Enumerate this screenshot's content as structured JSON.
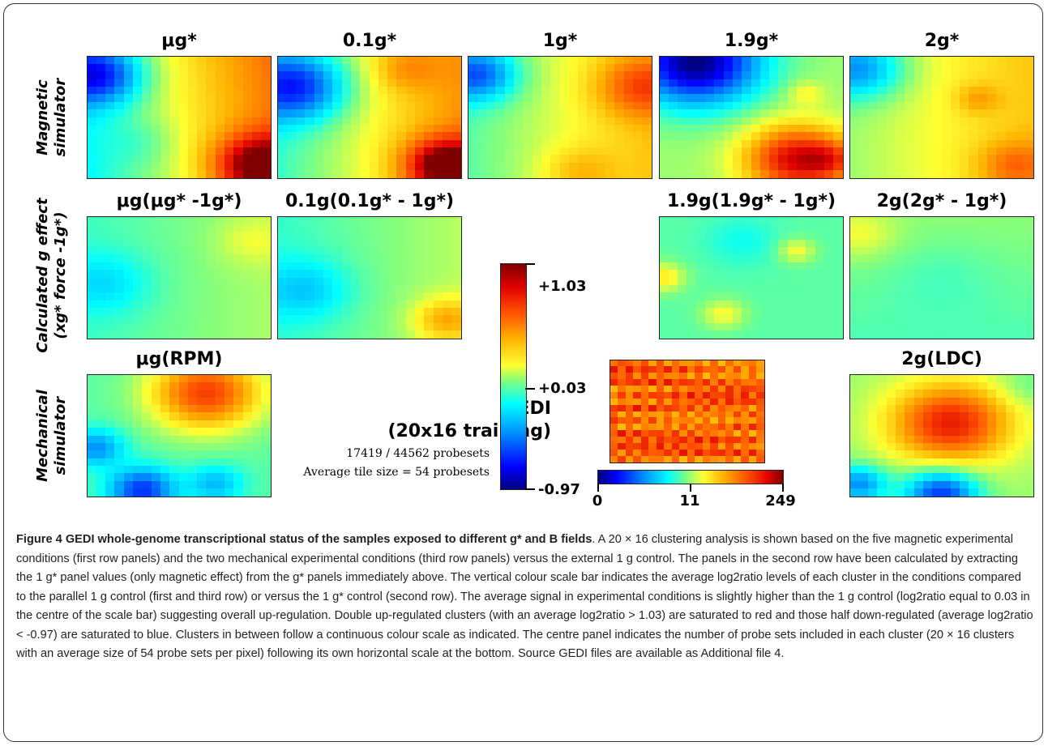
{
  "figure": {
    "column_titles": [
      "μg*",
      "0.1g*",
      "1g*",
      "1.9g*",
      "2g*"
    ],
    "row2_titles": [
      "μg(μg* -1g*)",
      "0.1g(0.1g* - 1g*)",
      "1.9g(1.9g* - 1g*)",
      "2g(2g* - 1g*)"
    ],
    "row3_titles": [
      "μg(RPM)",
      "2g(LDC)"
    ],
    "row_labels": {
      "magnetic": "Magnetic simulator",
      "calculated_line1": "Calculated g effect",
      "calculated_line2": "(xg* force -1g*)",
      "mechanical": "Mechanical simulator"
    },
    "gedi": {
      "title_line1": "GEDI",
      "title_line2": "(20x16 training)",
      "probesets": "17419 / 44562 probesets",
      "tile_size": "Average tile size = 54 probesets"
    },
    "vertical_scale": {
      "top": "+1.03",
      "middle": "+0.03",
      "bottom": "-0.97"
    },
    "horizontal_scale": {
      "left": "0",
      "middle": "11",
      "right": "249"
    },
    "colors": {
      "low": "#000080",
      "mid": "#ffff30",
      "high": "#7f0000",
      "frame": "#333333"
    }
  },
  "caption": {
    "heading": "Figure 4 GEDI whole-genome transcriptional status of the samples exposed to different g* and B fields",
    "body": ". A 20 × 16 clustering analysis is shown based on the five magnetic experimental conditions (first row panels) and the two mechanical experimental conditions (third row panels) versus the external 1 g control. The panels in the second row have been calculated by extracting the 1 g* panel values (only magnetic effect) from the g* panels immediately above. The vertical colour scale bar indicates the average log2ratio levels of each cluster in the conditions compared to the parallel 1 g control (first and third row) or versus the 1 g* control (second row). The average signal in experimental conditions is slightly higher than the 1 g control (log2ratio equal to 0.03 in the centre of the scale bar) suggesting overall up-regulation. Double up-regulated clusters (with an average log2ratio > 1.03) are saturated to red and those half down-regulated (average log2ratio < -0.97) are saturated to blue. Clusters in between follow a continuous colour scale as indicated. The centre panel indicates the number of probe sets included in each cluster (20 × 16 clusters with an average size of 54 probe sets per pixel) following its own horizontal scale at the bottom. Source GEDI files are available as Additional file 4."
  }
}
